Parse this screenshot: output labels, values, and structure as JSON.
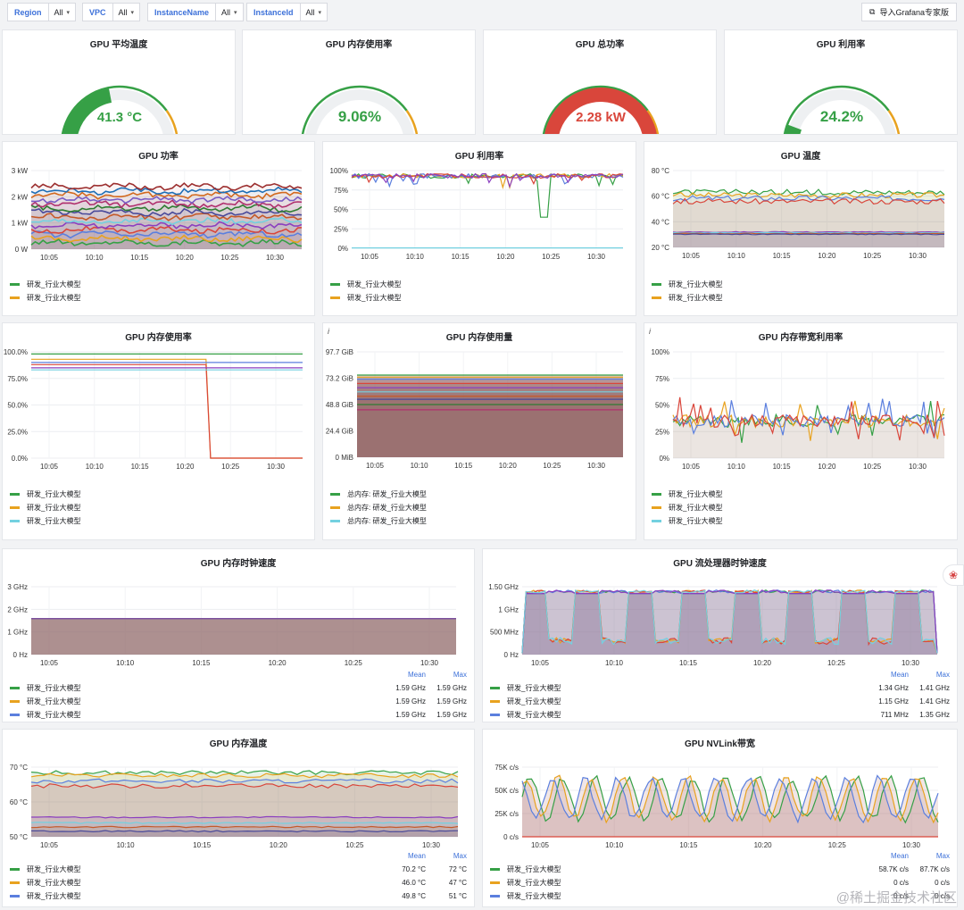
{
  "filters": [
    {
      "label": "Region",
      "value": "All"
    },
    {
      "label": "VPC",
      "value": "All"
    },
    {
      "label": "InstanceName",
      "value": "All"
    },
    {
      "label": "InstanceId",
      "value": "All"
    }
  ],
  "import_button": "导入Grafana专家版",
  "gauges": [
    {
      "title": "GPU 平均温度",
      "value": 41.3,
      "display": "41.3 °C",
      "fraction": 0.46,
      "color": "#36a046"
    },
    {
      "title": "GPU 内存使用率",
      "value": 9.06,
      "display": "9.06%",
      "fraction": 0.0906,
      "color": "#36a046"
    },
    {
      "title": "GPU 总功率",
      "value": 2.28,
      "display": "2.28 kW",
      "fraction": 0.82,
      "color": "#d9463b"
    },
    {
      "title": "GPU 利用率",
      "value": 24.2,
      "display": "24.2%",
      "fraction": 0.242,
      "color": "#36a046"
    }
  ],
  "x_ticks": [
    "10:05",
    "10:10",
    "10:15",
    "10:20",
    "10:25",
    "10:30"
  ],
  "legend_name": "研发_行业大模型",
  "legend_names_mem": [
    "总内存: 研发_行业大模型",
    "总内存: 研发_行业大模型",
    "总内存: 研发_行业大模型"
  ],
  "panels": {
    "power": {
      "title": "GPU 功率",
      "y_ticks": [
        "3 kW",
        "2 kW",
        "1 kW",
        "0 W"
      ]
    },
    "util": {
      "title": "GPU 利用率",
      "y_ticks": [
        "100%",
        "75%",
        "50%",
        "25%",
        "0%"
      ]
    },
    "temp": {
      "title": "GPU 温度",
      "y_ticks": [
        "80 °C",
        "60 °C",
        "40 °C",
        "20 °C"
      ]
    },
    "memrate": {
      "title": "GPU 内存使用率",
      "y_ticks": [
        "100.0%",
        "75.0%",
        "50.0%",
        "25.0%",
        "0.0%"
      ]
    },
    "memused": {
      "title": "GPU 内存使用量",
      "y_ticks": [
        "97.7 GiB",
        "73.2 GiB",
        "48.8 GiB",
        "24.4 GiB",
        "0 MiB"
      ]
    },
    "membw": {
      "title": "GPU 内存带宽利用率",
      "y_ticks": [
        "100%",
        "75%",
        "50%",
        "25%",
        "0%"
      ]
    },
    "memclk": {
      "title": "GPU 内存时钟速度",
      "y_ticks": [
        "3 GHz",
        "2 GHz",
        "1 GHz",
        "0 Hz"
      ],
      "legend": [
        {
          "name": "研发_行业大模型",
          "mean": "1.59 GHz",
          "max": "1.59 GHz",
          "color": "#36a046"
        },
        {
          "name": "研发_行业大模型",
          "mean": "1.59 GHz",
          "max": "1.59 GHz",
          "color": "#e8a21f"
        },
        {
          "name": "研发_行业大模型",
          "mean": "1.59 GHz",
          "max": "1.59 GHz",
          "color": "#5b7fde"
        }
      ]
    },
    "smclk": {
      "title": "GPU 流处理器时钟速度",
      "y_ticks": [
        "1.50 GHz",
        "1 GHz",
        "500 MHz",
        "0 Hz"
      ],
      "legend": [
        {
          "name": "研发_行业大模型",
          "mean": "1.34 GHz",
          "max": "1.41 GHz",
          "color": "#36a046"
        },
        {
          "name": "研发_行业大模型",
          "mean": "1.15 GHz",
          "max": "1.41 GHz",
          "color": "#e8a21f"
        },
        {
          "name": "研发_行业大模型",
          "mean": "711 MHz",
          "max": "1.35 GHz",
          "color": "#5b7fde"
        }
      ]
    },
    "memtemp": {
      "title": "GPU 内存温度",
      "y_ticks": [
        "70 °C",
        "60 °C",
        "50 °C"
      ],
      "legend": [
        {
          "name": "研发_行业大模型",
          "mean": "70.2 °C",
          "max": "72 °C",
          "color": "#36a046"
        },
        {
          "name": "研发_行业大模型",
          "mean": "46.0 °C",
          "max": "47 °C",
          "color": "#e8a21f"
        },
        {
          "name": "研发_行业大模型",
          "mean": "49.8 °C",
          "max": "51 °C",
          "color": "#5b7fde"
        }
      ]
    },
    "nvlink": {
      "title": "GPU NVLink带宽",
      "y_ticks": [
        "75K c/s",
        "50K c/s",
        "25K c/s",
        "0 c/s"
      ],
      "legend": [
        {
          "name": "研发_行业大模型",
          "mean": "58.7K c/s",
          "max": "87.7K c/s",
          "color": "#36a046"
        },
        {
          "name": "研发_行业大模型",
          "mean": "0 c/s",
          "max": "0 c/s",
          "color": "#e8a21f"
        },
        {
          "name": "研发_行业大模型",
          "mean": "0 c/s",
          "max": "0 c/s",
          "color": "#5b7fde"
        }
      ]
    }
  },
  "legend_header": {
    "mean": "Mean",
    "max": "Max"
  },
  "watermark": "@稀土掘金技术社区",
  "colors": {
    "green": "#36a046",
    "orange": "#e8a21f",
    "blue": "#5b7fde",
    "cyan": "#73d1e0",
    "red": "#d9463b",
    "purple": "#8b3fbf",
    "link": "#3d71d9"
  }
}
